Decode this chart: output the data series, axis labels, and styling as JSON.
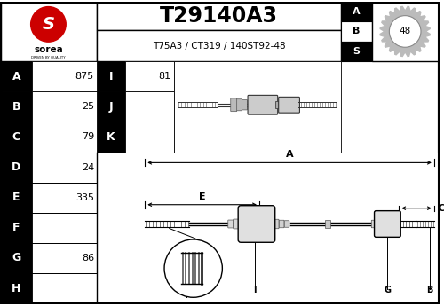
{
  "title": "T29140A3",
  "subtitle": "T75A3 / CT319 / 140ST92-48",
  "abs_number": "48",
  "left_labels": [
    "A",
    "B",
    "C",
    "D",
    "E",
    "F",
    "G",
    "H"
  ],
  "left_values": [
    "875",
    "25",
    "79",
    "24",
    "335",
    "",
    "86",
    ""
  ],
  "right_labels": [
    "I",
    "J",
    "K"
  ],
  "right_values": [
    "81",
    "",
    ""
  ],
  "bg_color": "#ffffff",
  "sorea_red": "#cc0000",
  "black": "#000000",
  "gray_shaft": "#555555",
  "gray_joint": "#aaaaaa",
  "gray_light": "#dddddd"
}
